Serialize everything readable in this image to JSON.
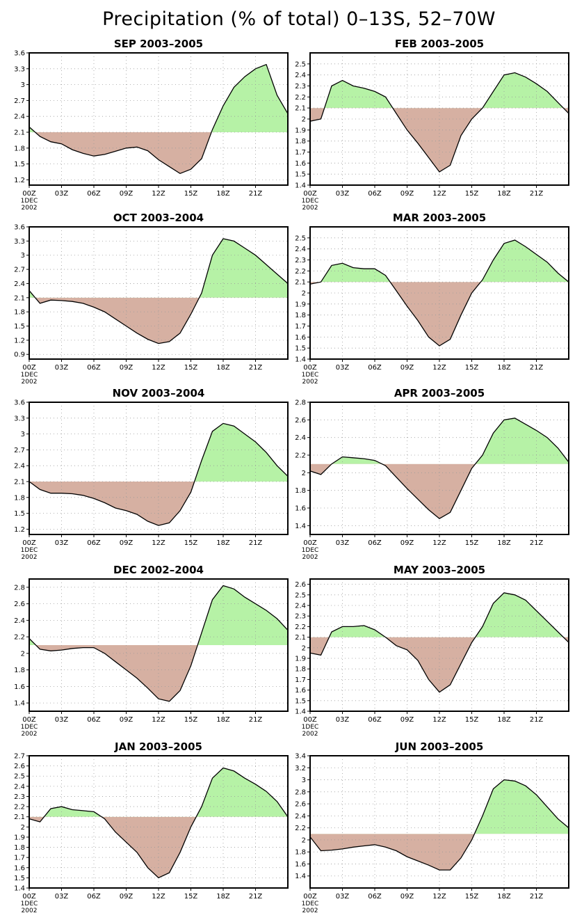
{
  "page": {
    "title": "Precipitation (% of total) 0–13S, 52–70W"
  },
  "chart_data": [
    {
      "type": "area",
      "title": "SEP 2003–2005",
      "baseline": 2.1,
      "ylim": [
        1.1,
        3.6
      ],
      "yticks": [
        "1.2",
        "1.5",
        "1.8",
        "2.1",
        "2.4",
        "2.7",
        "3",
        "3.3",
        "3.6"
      ],
      "xticks": [
        "00Z",
        "03Z",
        "06Z",
        "09Z",
        "12Z",
        "15Z",
        "18Z",
        "21Z"
      ],
      "xsub": [
        "1DEC",
        "2002"
      ],
      "grid": true,
      "x": [
        0,
        1,
        2,
        3,
        4,
        5,
        6,
        7,
        8,
        9,
        10,
        11,
        12,
        13,
        14,
        15,
        16,
        17,
        18,
        19,
        20,
        21,
        22,
        23,
        24
      ],
      "y": [
        2.2,
        2.02,
        1.92,
        1.88,
        1.77,
        1.7,
        1.65,
        1.68,
        1.74,
        1.8,
        1.82,
        1.75,
        1.58,
        1.45,
        1.32,
        1.4,
        1.6,
        2.15,
        2.6,
        2.95,
        3.15,
        3.3,
        3.38,
        2.8,
        2.45
      ]
    },
    {
      "type": "area",
      "title": "FEB 2003–2005",
      "baseline": 2.1,
      "ylim": [
        1.4,
        2.6
      ],
      "yticks": [
        "1.4",
        "1.5",
        "1.6",
        "1.7",
        "1.8",
        "1.9",
        "2",
        "2.1",
        "2.2",
        "2.3",
        "2.4",
        "2.5"
      ],
      "xticks": [
        "00Z",
        "03Z",
        "06Z",
        "09Z",
        "12Z",
        "15Z",
        "18Z",
        "21Z"
      ],
      "xsub": [
        "1DEC",
        "2002"
      ],
      "grid": true,
      "x": [
        0,
        1,
        2,
        3,
        4,
        5,
        6,
        7,
        8,
        9,
        10,
        11,
        12,
        13,
        14,
        15,
        16,
        17,
        18,
        19,
        20,
        21,
        22,
        23,
        24
      ],
      "y": [
        1.98,
        2.0,
        2.3,
        2.35,
        2.3,
        2.28,
        2.25,
        2.2,
        2.05,
        1.9,
        1.78,
        1.65,
        1.52,
        1.58,
        1.85,
        2.0,
        2.1,
        2.25,
        2.4,
        2.42,
        2.38,
        2.32,
        2.25,
        2.15,
        2.05
      ]
    },
    {
      "type": "area",
      "title": "OCT 2003–2004",
      "baseline": 2.1,
      "ylim": [
        0.8,
        3.6
      ],
      "yticks": [
        "0.9",
        "1.2",
        "1.5",
        "1.8",
        "2.1",
        "2.4",
        "2.7",
        "3",
        "3.3",
        "3.6"
      ],
      "xticks": [
        "00Z",
        "03Z",
        "06Z",
        "09Z",
        "12Z",
        "15Z",
        "18Z",
        "21Z"
      ],
      "xsub": [
        "1DEC",
        "2002"
      ],
      "grid": true,
      "x": [
        0,
        1,
        2,
        3,
        4,
        5,
        6,
        7,
        8,
        9,
        10,
        11,
        12,
        13,
        14,
        15,
        16,
        17,
        18,
        19,
        20,
        21,
        22,
        23,
        24
      ],
      "y": [
        2.25,
        1.98,
        2.05,
        2.04,
        2.02,
        1.98,
        1.9,
        1.8,
        1.65,
        1.5,
        1.35,
        1.22,
        1.13,
        1.17,
        1.35,
        1.75,
        2.2,
        3.0,
        3.35,
        3.3,
        3.15,
        3.0,
        2.8,
        2.6,
        2.4
      ]
    },
    {
      "type": "area",
      "title": "MAR 2003–2005",
      "baseline": 2.1,
      "ylim": [
        1.4,
        2.6
      ],
      "yticks": [
        "1.4",
        "1.5",
        "1.6",
        "1.7",
        "1.8",
        "1.9",
        "2",
        "2.1",
        "2.2",
        "2.3",
        "2.4",
        "2.5"
      ],
      "xticks": [
        "00Z",
        "03Z",
        "06Z",
        "09Z",
        "12Z",
        "15Z",
        "18Z",
        "21Z"
      ],
      "xsub": [
        "1DEC",
        "2002"
      ],
      "grid": true,
      "x": [
        0,
        1,
        2,
        3,
        4,
        5,
        6,
        7,
        8,
        9,
        10,
        11,
        12,
        13,
        14,
        15,
        16,
        17,
        18,
        19,
        20,
        21,
        22,
        23,
        24
      ],
      "y": [
        2.08,
        2.1,
        2.25,
        2.27,
        2.23,
        2.22,
        2.22,
        2.16,
        2.02,
        1.88,
        1.75,
        1.6,
        1.52,
        1.58,
        1.8,
        2.0,
        2.12,
        2.3,
        2.45,
        2.48,
        2.42,
        2.35,
        2.28,
        2.18,
        2.1
      ]
    },
    {
      "type": "area",
      "title": "NOV 2003–2004",
      "baseline": 2.1,
      "ylim": [
        1.1,
        3.6
      ],
      "yticks": [
        "1.2",
        "1.5",
        "1.8",
        "2.1",
        "2.4",
        "2.7",
        "3",
        "3.3",
        "3.6"
      ],
      "xticks": [
        "00Z",
        "03Z",
        "06Z",
        "09Z",
        "12Z",
        "15Z",
        "18Z",
        "21Z"
      ],
      "xsub": [
        "1DEC",
        "2002"
      ],
      "grid": true,
      "x": [
        0,
        1,
        2,
        3,
        4,
        5,
        6,
        7,
        8,
        9,
        10,
        11,
        12,
        13,
        14,
        15,
        16,
        17,
        18,
        19,
        20,
        21,
        22,
        23,
        24
      ],
      "y": [
        2.1,
        1.95,
        1.88,
        1.88,
        1.87,
        1.84,
        1.78,
        1.7,
        1.6,
        1.55,
        1.48,
        1.35,
        1.27,
        1.32,
        1.55,
        1.9,
        2.5,
        3.05,
        3.2,
        3.15,
        3.0,
        2.85,
        2.65,
        2.4,
        2.2
      ]
    },
    {
      "type": "area",
      "title": "APR 2003–2005",
      "baseline": 2.1,
      "ylim": [
        1.3,
        2.8
      ],
      "yticks": [
        "1.4",
        "1.6",
        "1.8",
        "2",
        "2.2",
        "2.4",
        "2.6",
        "2.8"
      ],
      "xticks": [
        "00Z",
        "03Z",
        "06Z",
        "09Z",
        "12Z",
        "15Z",
        "18Z",
        "21Z"
      ],
      "xsub": [
        "1DEC",
        "2002"
      ],
      "grid": true,
      "x": [
        0,
        1,
        2,
        3,
        4,
        5,
        6,
        7,
        8,
        9,
        10,
        11,
        12,
        13,
        14,
        15,
        16,
        17,
        18,
        19,
        20,
        21,
        22,
        23,
        24
      ],
      "y": [
        2.02,
        1.98,
        2.1,
        2.18,
        2.17,
        2.16,
        2.14,
        2.08,
        1.95,
        1.82,
        1.7,
        1.58,
        1.48,
        1.55,
        1.8,
        2.05,
        2.2,
        2.45,
        2.6,
        2.62,
        2.55,
        2.48,
        2.4,
        2.28,
        2.12
      ]
    },
    {
      "type": "area",
      "title": "DEC 2002–2004",
      "baseline": 2.1,
      "ylim": [
        1.3,
        2.9
      ],
      "yticks": [
        "1.4",
        "1.6",
        "1.8",
        "2",
        "2.2",
        "2.4",
        "2.6",
        "2.8"
      ],
      "xticks": [
        "00Z",
        "03Z",
        "06Z",
        "09Z",
        "12Z",
        "15Z",
        "18Z",
        "21Z"
      ],
      "xsub": [
        "1DEC",
        "2002"
      ],
      "grid": true,
      "x": [
        0,
        1,
        2,
        3,
        4,
        5,
        6,
        7,
        8,
        9,
        10,
        11,
        12,
        13,
        14,
        15,
        16,
        17,
        18,
        19,
        20,
        21,
        22,
        23,
        24
      ],
      "y": [
        2.18,
        2.05,
        2.03,
        2.04,
        2.06,
        2.07,
        2.07,
        2.0,
        1.9,
        1.8,
        1.7,
        1.58,
        1.45,
        1.42,
        1.55,
        1.85,
        2.25,
        2.65,
        2.82,
        2.78,
        2.68,
        2.6,
        2.52,
        2.42,
        2.28
      ]
    },
    {
      "type": "area",
      "title": "MAY 2003–2005",
      "baseline": 2.1,
      "ylim": [
        1.4,
        2.65
      ],
      "yticks": [
        "1.4",
        "1.5",
        "1.6",
        "1.7",
        "1.8",
        "1.9",
        "2",
        "2.1",
        "2.2",
        "2.3",
        "2.4",
        "2.5",
        "2.6"
      ],
      "xticks": [
        "00Z",
        "03Z",
        "06Z",
        "09Z",
        "12Z",
        "15Z",
        "18Z",
        "21Z"
      ],
      "xsub": [
        "1DEC",
        "2002"
      ],
      "grid": true,
      "x": [
        0,
        1,
        2,
        3,
        4,
        5,
        6,
        7,
        8,
        9,
        10,
        11,
        12,
        13,
        14,
        15,
        16,
        17,
        18,
        19,
        20,
        21,
        22,
        23,
        24
      ],
      "y": [
        1.95,
        1.93,
        2.15,
        2.2,
        2.2,
        2.21,
        2.17,
        2.1,
        2.02,
        1.98,
        1.88,
        1.7,
        1.58,
        1.65,
        1.85,
        2.05,
        2.2,
        2.42,
        2.52,
        2.5,
        2.45,
        2.35,
        2.25,
        2.15,
        2.05
      ]
    },
    {
      "type": "area",
      "title": "JAN 2003–2005",
      "baseline": 2.1,
      "ylim": [
        1.4,
        2.7
      ],
      "yticks": [
        "1.4",
        "1.5",
        "1.6",
        "1.7",
        "1.8",
        "1.9",
        "2",
        "2.1",
        "2.2",
        "2.3",
        "2.4",
        "2.5",
        "2.6",
        "2.7"
      ],
      "xticks": [
        "00Z",
        "03Z",
        "06Z",
        "09Z",
        "12Z",
        "15Z",
        "18Z",
        "21Z"
      ],
      "xsub": [
        "1DEC",
        "2002"
      ],
      "grid": true,
      "x": [
        0,
        1,
        2,
        3,
        4,
        5,
        6,
        7,
        8,
        9,
        10,
        11,
        12,
        13,
        14,
        15,
        16,
        17,
        18,
        19,
        20,
        21,
        22,
        23,
        24
      ],
      "y": [
        2.08,
        2.05,
        2.18,
        2.2,
        2.17,
        2.16,
        2.15,
        2.08,
        1.95,
        1.85,
        1.75,
        1.6,
        1.5,
        1.55,
        1.75,
        2.0,
        2.2,
        2.48,
        2.58,
        2.55,
        2.48,
        2.42,
        2.35,
        2.25,
        2.1
      ]
    },
    {
      "type": "area",
      "title": "JUN 2003–2005",
      "baseline": 2.1,
      "ylim": [
        1.2,
        3.4
      ],
      "yticks": [
        "1.4",
        "1.6",
        "1.8",
        "2",
        "2.2",
        "2.4",
        "2.6",
        "2.8",
        "3",
        "3.2",
        "3.4"
      ],
      "xticks": [
        "00Z",
        "03Z",
        "06Z",
        "09Z",
        "12Z",
        "15Z",
        "18Z",
        "21Z"
      ],
      "xsub": [
        "1DEC",
        "2002"
      ],
      "grid": true,
      "x": [
        0,
        1,
        2,
        3,
        4,
        5,
        6,
        7,
        8,
        9,
        10,
        11,
        12,
        13,
        14,
        15,
        16,
        17,
        18,
        19,
        20,
        21,
        22,
        23,
        24
      ],
      "y": [
        2.05,
        1.82,
        1.83,
        1.85,
        1.88,
        1.9,
        1.92,
        1.88,
        1.82,
        1.72,
        1.65,
        1.58,
        1.5,
        1.5,
        1.7,
        2.0,
        2.4,
        2.85,
        3.0,
        2.98,
        2.9,
        2.75,
        2.55,
        2.35,
        2.2
      ]
    }
  ]
}
